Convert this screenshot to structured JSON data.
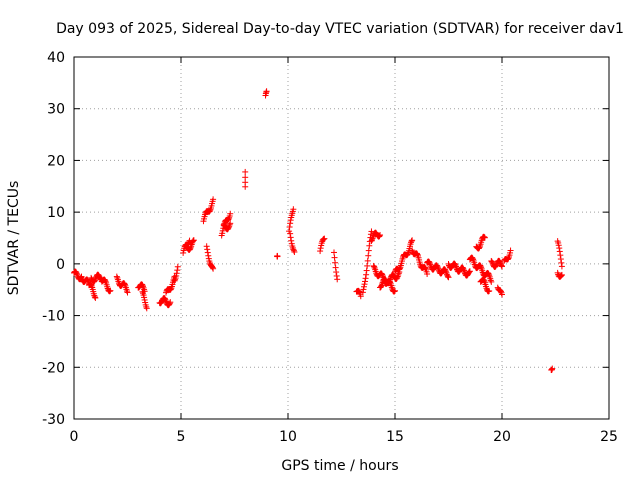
{
  "chart_data": {
    "type": "scatter",
    "title": "Day 093 of 2025, Sidereal Day-to-day VTEC variation (SDTVAR) for receiver dav1",
    "xlabel": "GPS time / hours",
    "ylabel": "SDTVAR / TECUs",
    "xlim": [
      0,
      25
    ],
    "ylim": [
      -30,
      40
    ],
    "xticks": [
      0,
      5,
      10,
      15,
      20,
      25
    ],
    "yticks": [
      -30,
      -20,
      -10,
      0,
      10,
      20,
      30,
      40
    ],
    "grid": true,
    "marker": "plus",
    "color": "#ff0000",
    "segments": [
      {
        "t0": 0.0,
        "t1": 0.35,
        "v0": -2,
        "v1": -2.5
      },
      {
        "t0": 0.35,
        "t1": 0.7,
        "v0": -2.5,
        "v1": -4
      },
      {
        "t0": 0.7,
        "t1": 1.0,
        "v0": -4,
        "v1": -6
      },
      {
        "t0": 0.8,
        "t1": 1.3,
        "v0": -3,
        "v1": -2.5
      },
      {
        "t0": 1.3,
        "t1": 1.7,
        "v0": -3,
        "v1": -5
      },
      {
        "t0": 2.0,
        "t1": 2.5,
        "v0": -3,
        "v1": -5
      },
      {
        "t0": 3.0,
        "t1": 3.3,
        "v0": -4,
        "v1": -5
      },
      {
        "t0": 3.2,
        "t1": 3.4,
        "v0": -6,
        "v1": -8
      },
      {
        "t0": 4.0,
        "t1": 4.5,
        "v0": -7,
        "v1": -7.5
      },
      {
        "t0": 4.3,
        "t1": 4.7,
        "v0": -6,
        "v1": -3
      },
      {
        "t0": 4.7,
        "t1": 4.85,
        "v0": -3,
        "v1": -0.5
      },
      {
        "t0": 5.1,
        "t1": 5.4,
        "v0": 2,
        "v1": 5
      },
      {
        "t0": 5.3,
        "t1": 5.6,
        "v0": 3,
        "v1": 4
      },
      {
        "t0": 6.05,
        "t1": 6.5,
        "v0": 8.5,
        "v1": 12
      },
      {
        "t0": 6.2,
        "t1": 6.5,
        "v0": 3,
        "v1": -1.5
      },
      {
        "t0": 6.9,
        "t1": 7.3,
        "v0": 6,
        "v1": 10
      },
      {
        "t0": 7.0,
        "t1": 7.3,
        "v0": 7,
        "v1": 7.5
      },
      {
        "t0": 8.0,
        "t1": 8.0,
        "v0": 15.5,
        "v1": 18
      },
      {
        "t0": 8.95,
        "t1": 9.0,
        "v0": 32,
        "v1": 33
      },
      {
        "t0": 9.5,
        "t1": 9.5,
        "v0": 2,
        "v1": 2
      },
      {
        "t0": 10.05,
        "t1": 10.25,
        "v0": 6,
        "v1": 11
      },
      {
        "t0": 10.1,
        "t1": 10.3,
        "v0": 6,
        "v1": 2
      },
      {
        "t0": 11.5,
        "t1": 11.7,
        "v0": 2.5,
        "v1": 5
      },
      {
        "t0": 12.15,
        "t1": 12.3,
        "v0": 2,
        "v1": -2.5
      },
      {
        "t0": 13.2,
        "t1": 13.4,
        "v0": -5,
        "v1": -6.5
      },
      {
        "t0": 13.5,
        "t1": 13.9,
        "v0": -6,
        "v1": 6
      },
      {
        "t0": 13.9,
        "t1": 14.3,
        "v0": 5,
        "v1": 6
      },
      {
        "t0": 14.0,
        "t1": 15.0,
        "v0": -1,
        "v1": -5
      },
      {
        "t0": 14.3,
        "t1": 15.2,
        "v0": -4,
        "v1": -2
      },
      {
        "t0": 15.0,
        "t1": 15.8,
        "v0": -2,
        "v1": 4
      },
      {
        "t0": 15.8,
        "t1": 16.5,
        "v0": 3,
        "v1": -2
      },
      {
        "t0": 16.5,
        "t1": 17.5,
        "v0": 0,
        "v1": -2
      },
      {
        "t0": 17.5,
        "t1": 18.5,
        "v0": 0,
        "v1": -2
      },
      {
        "t0": 18.5,
        "t1": 19.5,
        "v0": 1,
        "v1": -3
      },
      {
        "t0": 18.8,
        "t1": 19.2,
        "v0": 3,
        "v1": 5
      },
      {
        "t0": 19.0,
        "t1": 19.4,
        "v0": -3,
        "v1": -5
      },
      {
        "t0": 19.5,
        "t1": 20.0,
        "v0": 0,
        "v1": 0
      },
      {
        "t0": 19.8,
        "t1": 20.0,
        "v0": -4,
        "v1": -6.5
      },
      {
        "t0": 20.1,
        "t1": 20.4,
        "v0": 0,
        "v1": 2.5
      },
      {
        "t0": 22.3,
        "t1": 22.35,
        "v0": -20,
        "v1": -19.8
      },
      {
        "t0": 22.6,
        "t1": 22.8,
        "v0": 4,
        "v1": 0
      },
      {
        "t0": 22.6,
        "t1": 22.8,
        "v0": -1.5,
        "v1": -2.5
      }
    ]
  }
}
